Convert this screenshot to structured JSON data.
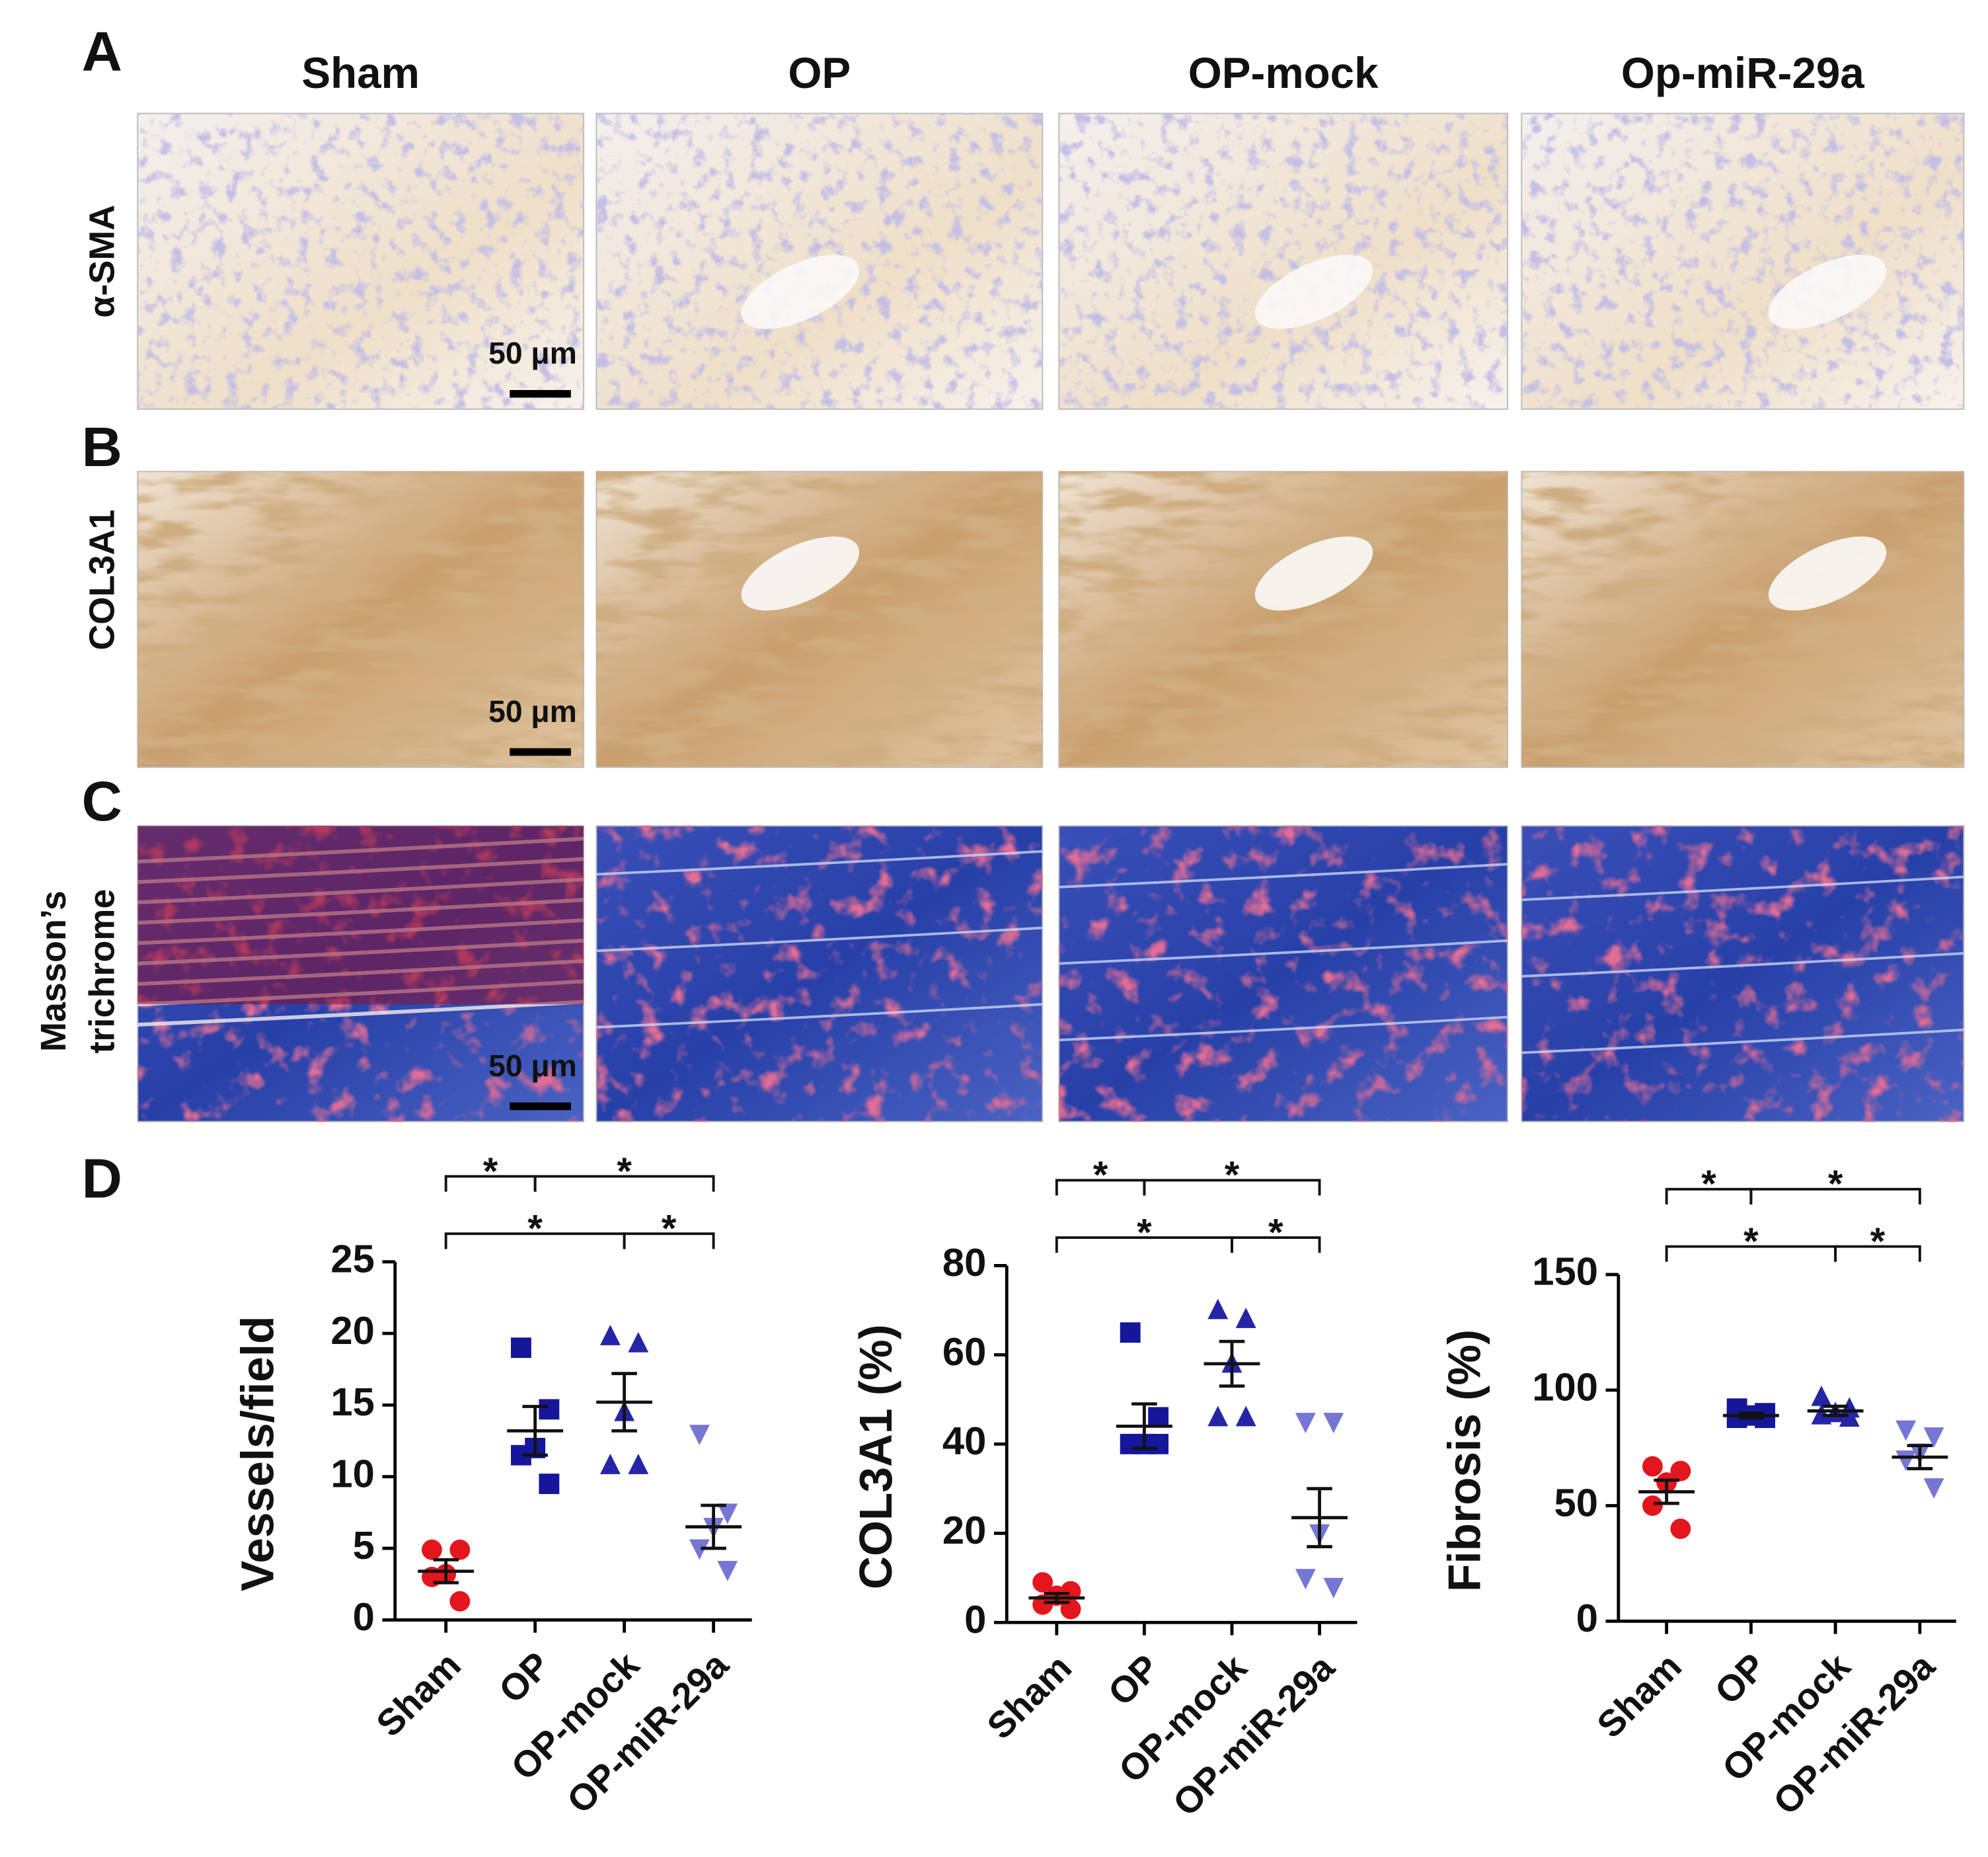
{
  "panel_labels": [
    "A",
    "B",
    "C",
    "D"
  ],
  "columns": [
    "Sham",
    "OP",
    "OP-mock",
    "Op-miR-29a"
  ],
  "row_labels": [
    [
      "α-SMA"
    ],
    [
      "COL3A1"
    ],
    [
      "Masson’s",
      "trichrome"
    ]
  ],
  "scale_bar": "50 μm",
  "chart_data": [
    {
      "type": "dot",
      "y_label": "Vessels/field",
      "categories": [
        "Sham",
        "OP",
        "OP-mock",
        "OP-miR-29a"
      ],
      "colors": [
        "#e3161d",
        "#16169a",
        "#2525a6",
        "#7676d4"
      ],
      "markers": [
        "circle",
        "square",
        "triangle",
        "triangle-down"
      ],
      "points": [
        [
          4.9,
          4.9,
          3.2,
          3.0,
          1.3
        ],
        [
          19.0,
          14.7,
          12.0,
          11.5,
          9.5
        ],
        [
          19.8,
          19.3,
          14.5,
          10.8,
          10.8
        ],
        [
          13.0,
          7.5,
          6.5,
          5.0,
          3.5
        ]
      ],
      "means": [
        3.4,
        13.2,
        15.2,
        6.5
      ],
      "sems": [
        0.8,
        1.7,
        2.0,
        1.5
      ],
      "ylim": [
        0,
        25
      ],
      "yticks": [
        0,
        5,
        10,
        15,
        20,
        25
      ],
      "comparisons": [
        {
          "groups": [
            "Sham",
            "OP-mock"
          ],
          "label": "*"
        },
        {
          "groups": [
            "OP-mock",
            "OP-miR-29a"
          ],
          "label": "*"
        },
        {
          "groups": [
            "Sham",
            "OP"
          ],
          "label": "*"
        },
        {
          "groups": [
            "OP",
            "OP-miR-29a"
          ],
          "label": "*"
        }
      ]
    },
    {
      "type": "dot",
      "y_label": "COL3A1 (%)",
      "categories": [
        "Sham",
        "OP",
        "OP-mock",
        "OP-miR-29a"
      ],
      "colors": [
        "#e3161d",
        "#16169a",
        "#2525a6",
        "#7676d4"
      ],
      "markers": [
        "circle",
        "square",
        "triangle",
        "triangle-down"
      ],
      "points": [
        [
          9,
          7,
          6,
          4,
          3
        ],
        [
          65,
          46,
          40,
          40,
          40
        ],
        [
          70,
          68,
          58,
          46,
          46
        ],
        [
          45,
          45,
          20,
          10,
          8
        ]
      ],
      "means": [
        5.5,
        44,
        58,
        23.5
      ],
      "sems": [
        1,
        5,
        5,
        6.5
      ],
      "ylim": [
        0,
        80
      ],
      "yticks": [
        0,
        20,
        40,
        60,
        80
      ],
      "comparisons": [
        {
          "groups": [
            "Sham",
            "OP-mock"
          ],
          "label": "*"
        },
        {
          "groups": [
            "OP-mock",
            "OP-miR-29a"
          ],
          "label": "*"
        },
        {
          "groups": [
            "Sham",
            "OP"
          ],
          "label": "*"
        },
        {
          "groups": [
            "OP",
            "OP-miR-29a"
          ],
          "label": "*"
        }
      ]
    },
    {
      "type": "dot",
      "y_label": "Fibrosis (%)",
      "categories": [
        "Sham",
        "OP",
        "OP-mock",
        "OP-miR-29a"
      ],
      "colors": [
        "#e3161d",
        "#16169a",
        "#2525a6",
        "#7676d4"
      ],
      "markers": [
        "circle",
        "square",
        "triangle",
        "triangle-down"
      ],
      "points": [
        [
          67,
          65,
          60,
          50,
          40
        ],
        [
          92,
          90,
          89,
          88,
          88
        ],
        [
          97,
          92,
          90,
          89,
          88
        ],
        [
          83,
          80,
          73,
          70,
          58
        ]
      ],
      "means": [
        56,
        89,
        91,
        71
      ],
      "sems": [
        5,
        1,
        2,
        5
      ],
      "ylim": [
        0,
        150
      ],
      "yticks": [
        0,
        50,
        100,
        150
      ],
      "comparisons": [
        {
          "groups": [
            "Sham",
            "OP-mock"
          ],
          "label": "*"
        },
        {
          "groups": [
            "OP-mock",
            "OP-miR-29a"
          ],
          "label": "*"
        },
        {
          "groups": [
            "Sham",
            "OP"
          ],
          "label": "*"
        },
        {
          "groups": [
            "OP",
            "OP-miR-29a"
          ],
          "label": "*"
        }
      ]
    }
  ]
}
